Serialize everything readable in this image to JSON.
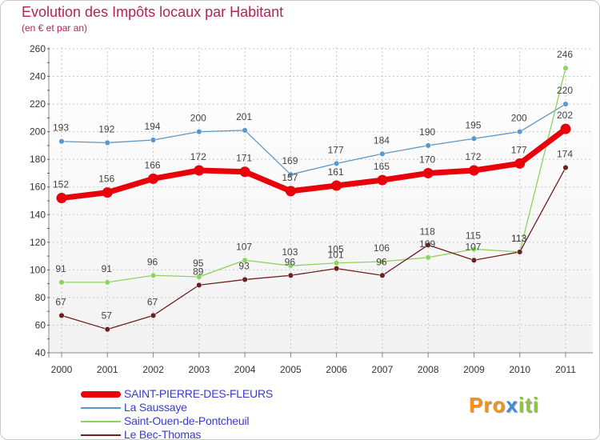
{
  "title": "Evolution des Impôts locaux par Habitant",
  "subtitle": "(en € et par an)",
  "logo": {
    "letters": [
      "P",
      "r",
      "o",
      "x",
      "i",
      "t",
      "i"
    ],
    "colors": [
      "#f29412",
      "#f29412",
      "#f29412",
      "#3c8dd6",
      "#8cc63f",
      "#8cc63f",
      "#8cc63f"
    ]
  },
  "chart_data": {
    "type": "line",
    "title": "Evolution des Impôts locaux par Habitant",
    "subtitle": "(en € et par an)",
    "xlabel": "",
    "ylabel": "",
    "categories": [
      "2000",
      "2001",
      "2002",
      "2003",
      "2004",
      "2005",
      "2006",
      "2007",
      "2008",
      "2009",
      "2010",
      "2011"
    ],
    "ylim": [
      40,
      260
    ],
    "yticks": [
      40,
      60,
      80,
      100,
      120,
      140,
      160,
      180,
      200,
      220,
      240,
      260
    ],
    "grid": true,
    "legend_position": "bottom-left",
    "series": [
      {
        "name": "SAINT-PIERRE-DES-FLEURS",
        "color": "#e8000b",
        "values": [
          152,
          156,
          166,
          172,
          171,
          157,
          161,
          165,
          170,
          172,
          177,
          202
        ],
        "labels": [
          "152",
          "156",
          "166",
          "172",
          "171",
          "157",
          "161",
          "165",
          "170",
          "172",
          "177",
          "202"
        ]
      },
      {
        "name": "La Saussaye",
        "color": "#5b97c9",
        "values": [
          193,
          192,
          194,
          200,
          201,
          169,
          177,
          184,
          190,
          195,
          200,
          220
        ],
        "labels": [
          "193",
          "192",
          "194",
          "200",
          "201",
          "169",
          "177",
          "184",
          "190",
          "195",
          "200",
          "220"
        ]
      },
      {
        "name": "Saint-Ouen-de-Pontcheuil",
        "color": "#8ed35e",
        "values": [
          91,
          91,
          96,
          95,
          107,
          103,
          105,
          106,
          109,
          115,
          113,
          246
        ],
        "labels": [
          "91",
          "91",
          "96",
          "95",
          "107",
          "103",
          "105",
          "106",
          "109",
          "115",
          "113",
          "246"
        ]
      },
      {
        "name": "Le Bec-Thomas",
        "color": "#6e1f1f",
        "values": [
          67,
          57,
          67,
          89,
          93,
          96,
          101,
          96,
          118,
          107,
          113,
          174
        ],
        "labels": [
          "67",
          "57",
          "67",
          "89",
          "93",
          "96",
          "101",
          "96",
          "118",
          "107",
          "113",
          "174"
        ]
      }
    ]
  }
}
